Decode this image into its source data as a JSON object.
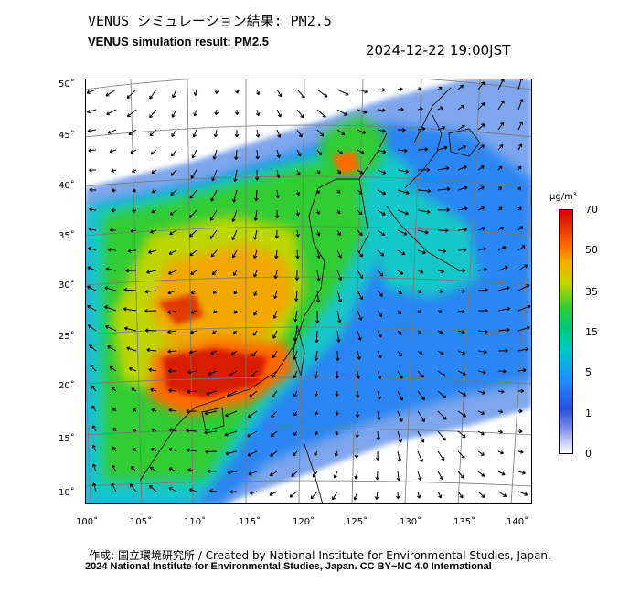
{
  "header": {
    "title_jp": "VENUS シミュレーション結果: PM2.5",
    "title_en": "VENUS simulation result: PM2.5",
    "timestamp": "2024-12-22 19:00JST"
  },
  "map": {
    "lat_labels": [
      "50˚",
      "45˚",
      "40˚",
      "35˚",
      "30˚",
      "25˚",
      "20˚",
      "15˚",
      "10˚"
    ],
    "lon_labels": [
      "100˚",
      "105˚",
      "110˚",
      "115˚",
      "120˚",
      "125˚",
      "130˚",
      "135˚",
      "140˚"
    ],
    "lat_range": [
      9,
      51
    ],
    "lon_range": [
      99.5,
      141
    ]
  },
  "colorbar": {
    "unit": "μg/m³",
    "ticks": [
      "70",
      "50",
      "35",
      "15",
      "5",
      "1",
      "0"
    ],
    "colors": [
      "#d40000",
      "#ff6600",
      "#f2b000",
      "#c8d400",
      "#32cd32",
      "#00c878",
      "#00c8c8",
      "#1e8cff",
      "#2850e0",
      "#8090e8",
      "#ffffff"
    ]
  },
  "footer": {
    "credit": "作成: 国立環境研究所 / Created by National Institute for Environmental Studies, Japan.",
    "license": "2024 National Institute for Environmental Studies, Japan. CC BY−NC 4.0 International"
  }
}
